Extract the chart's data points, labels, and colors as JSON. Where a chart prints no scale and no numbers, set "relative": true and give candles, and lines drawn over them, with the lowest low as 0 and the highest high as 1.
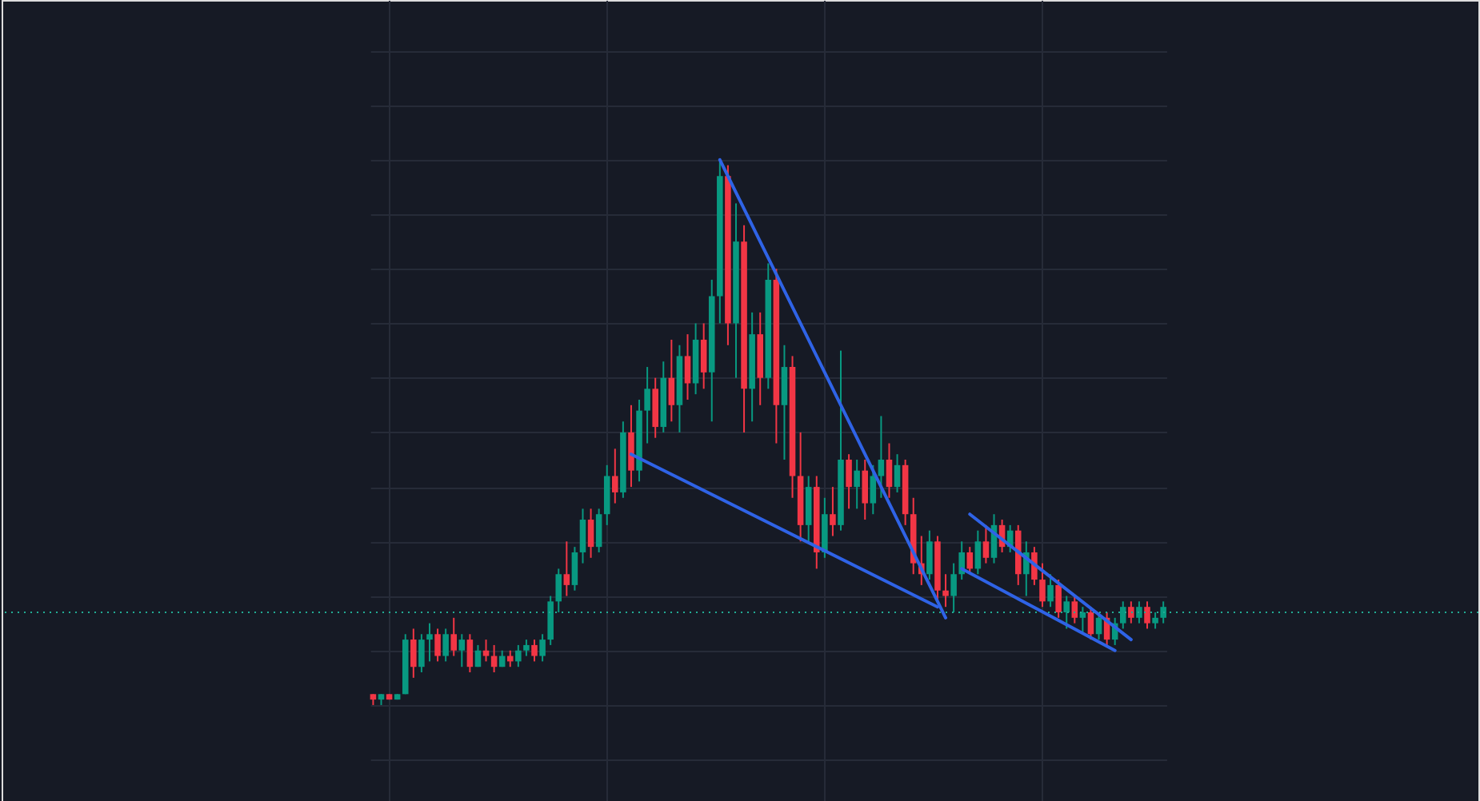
{
  "chart_data": {
    "type": "candlestick",
    "relative": true,
    "grid": true,
    "tick_labels": false,
    "categories": [
      null,
      null,
      null,
      null,
      null,
      null,
      null,
      null,
      null,
      null,
      null,
      null,
      null,
      null,
      null,
      null,
      null,
      null,
      null,
      null,
      null,
      null,
      null,
      null,
      null,
      null,
      null,
      null,
      null,
      null,
      null,
      null,
      null,
      null,
      null,
      null,
      null,
      null,
      null,
      null,
      null,
      null,
      null,
      null,
      null,
      null,
      null,
      null,
      null,
      null,
      null,
      null,
      null,
      null,
      null,
      null,
      null,
      null,
      null,
      null,
      null,
      null,
      null,
      null,
      null,
      null,
      null,
      null,
      null,
      null,
      null,
      null,
      null,
      null,
      null,
      null,
      null,
      null,
      null,
      null,
      null,
      null,
      null,
      null,
      null,
      null,
      null,
      null,
      null,
      null,
      null,
      null,
      null,
      null,
      null,
      null,
      null,
      null,
      null
    ],
    "ohlc": [
      [
        0.02,
        0.02,
        0.0,
        0.01
      ],
      [
        0.01,
        0.02,
        0.0,
        0.02
      ],
      [
        0.02,
        0.02,
        0.01,
        0.01
      ],
      [
        0.01,
        0.02,
        0.01,
        0.02
      ],
      [
        0.02,
        0.13,
        0.02,
        0.12
      ],
      [
        0.12,
        0.14,
        0.05,
        0.07
      ],
      [
        0.07,
        0.13,
        0.06,
        0.12
      ],
      [
        0.12,
        0.15,
        0.08,
        0.13
      ],
      [
        0.13,
        0.14,
        0.08,
        0.09
      ],
      [
        0.09,
        0.14,
        0.08,
        0.13
      ],
      [
        0.13,
        0.16,
        0.09,
        0.1
      ],
      [
        0.1,
        0.13,
        0.07,
        0.12
      ],
      [
        0.12,
        0.13,
        0.06,
        0.07
      ],
      [
        0.07,
        0.11,
        0.07,
        0.1
      ],
      [
        0.1,
        0.12,
        0.08,
        0.09
      ],
      [
        0.09,
        0.11,
        0.06,
        0.07
      ],
      [
        0.07,
        0.1,
        0.07,
        0.09
      ],
      [
        0.09,
        0.1,
        0.07,
        0.08
      ],
      [
        0.08,
        0.11,
        0.07,
        0.1
      ],
      [
        0.1,
        0.12,
        0.09,
        0.11
      ],
      [
        0.11,
        0.12,
        0.08,
        0.09
      ],
      [
        0.09,
        0.13,
        0.08,
        0.12
      ],
      [
        0.12,
        0.2,
        0.11,
        0.19
      ],
      [
        0.19,
        0.25,
        0.17,
        0.24
      ],
      [
        0.24,
        0.3,
        0.2,
        0.22
      ],
      [
        0.22,
        0.29,
        0.21,
        0.28
      ],
      [
        0.28,
        0.36,
        0.26,
        0.34
      ],
      [
        0.34,
        0.36,
        0.27,
        0.29
      ],
      [
        0.29,
        0.36,
        0.28,
        0.35
      ],
      [
        0.35,
        0.44,
        0.33,
        0.42
      ],
      [
        0.42,
        0.47,
        0.37,
        0.39
      ],
      [
        0.39,
        0.52,
        0.38,
        0.5
      ],
      [
        0.5,
        0.55,
        0.4,
        0.43
      ],
      [
        0.43,
        0.56,
        0.41,
        0.54
      ],
      [
        0.54,
        0.62,
        0.48,
        0.58
      ],
      [
        0.58,
        0.6,
        0.49,
        0.51
      ],
      [
        0.51,
        0.63,
        0.5,
        0.6
      ],
      [
        0.6,
        0.67,
        0.52,
        0.55
      ],
      [
        0.55,
        0.66,
        0.5,
        0.64
      ],
      [
        0.64,
        0.68,
        0.56,
        0.59
      ],
      [
        0.59,
        0.7,
        0.57,
        0.67
      ],
      [
        0.67,
        0.7,
        0.58,
        0.61
      ],
      [
        0.61,
        0.78,
        0.52,
        0.75
      ],
      [
        0.75,
        1.0,
        0.7,
        0.97
      ],
      [
        0.97,
        0.99,
        0.66,
        0.7
      ],
      [
        0.7,
        0.92,
        0.6,
        0.85
      ],
      [
        0.85,
        0.88,
        0.5,
        0.58
      ],
      [
        0.58,
        0.72,
        0.52,
        0.68
      ],
      [
        0.68,
        0.72,
        0.55,
        0.6
      ],
      [
        0.6,
        0.81,
        0.58,
        0.78
      ],
      [
        0.78,
        0.8,
        0.48,
        0.55
      ],
      [
        0.55,
        0.66,
        0.45,
        0.62
      ],
      [
        0.62,
        0.64,
        0.38,
        0.42
      ],
      [
        0.42,
        0.5,
        0.3,
        0.33
      ],
      [
        0.33,
        0.42,
        0.3,
        0.4
      ],
      [
        0.4,
        0.42,
        0.25,
        0.28
      ],
      [
        0.28,
        0.38,
        0.27,
        0.35
      ],
      [
        0.35,
        0.4,
        0.31,
        0.33
      ],
      [
        0.33,
        0.65,
        0.32,
        0.45
      ],
      [
        0.45,
        0.46,
        0.36,
        0.4
      ],
      [
        0.4,
        0.45,
        0.36,
        0.43
      ],
      [
        0.43,
        0.45,
        0.34,
        0.37
      ],
      [
        0.37,
        0.44,
        0.35,
        0.42
      ],
      [
        0.42,
        0.53,
        0.38,
        0.45
      ],
      [
        0.45,
        0.48,
        0.38,
        0.4
      ],
      [
        0.4,
        0.46,
        0.39,
        0.44
      ],
      [
        0.44,
        0.45,
        0.33,
        0.35
      ],
      [
        0.35,
        0.38,
        0.24,
        0.26
      ],
      [
        0.26,
        0.31,
        0.22,
        0.24
      ],
      [
        0.24,
        0.32,
        0.23,
        0.3
      ],
      [
        0.3,
        0.31,
        0.19,
        0.21
      ],
      [
        0.21,
        0.24,
        0.18,
        0.2
      ],
      [
        0.2,
        0.26,
        0.17,
        0.24
      ],
      [
        0.24,
        0.3,
        0.23,
        0.28
      ],
      [
        0.28,
        0.29,
        0.24,
        0.25
      ],
      [
        0.25,
        0.32,
        0.24,
        0.3
      ],
      [
        0.3,
        0.33,
        0.26,
        0.27
      ],
      [
        0.27,
        0.35,
        0.26,
        0.33
      ],
      [
        0.33,
        0.34,
        0.28,
        0.29
      ],
      [
        0.29,
        0.33,
        0.28,
        0.32
      ],
      [
        0.32,
        0.33,
        0.22,
        0.24
      ],
      [
        0.24,
        0.3,
        0.2,
        0.28
      ],
      [
        0.28,
        0.29,
        0.22,
        0.23
      ],
      [
        0.23,
        0.26,
        0.18,
        0.19
      ],
      [
        0.19,
        0.24,
        0.18,
        0.22
      ],
      [
        0.22,
        0.23,
        0.16,
        0.17
      ],
      [
        0.17,
        0.2,
        0.14,
        0.19
      ],
      [
        0.19,
        0.2,
        0.15,
        0.16
      ],
      [
        0.16,
        0.18,
        0.13,
        0.17
      ],
      [
        0.17,
        0.18,
        0.12,
        0.13
      ],
      [
        0.13,
        0.17,
        0.12,
        0.16
      ],
      [
        0.16,
        0.17,
        0.11,
        0.12
      ],
      [
        0.12,
        0.16,
        0.11,
        0.15
      ],
      [
        0.15,
        0.19,
        0.14,
        0.18
      ],
      [
        0.18,
        0.19,
        0.15,
        0.16
      ],
      [
        0.16,
        0.19,
        0.15,
        0.18
      ],
      [
        0.18,
        0.19,
        0.14,
        0.15
      ],
      [
        0.15,
        0.17,
        0.14,
        0.16
      ],
      [
        0.16,
        0.19,
        0.15,
        0.18
      ]
    ],
    "colors": [
      "#f23645",
      "#089981",
      "#f23645",
      "#089981",
      "#089981",
      "#f23645",
      "#089981",
      "#089981",
      "#f23645",
      "#089981",
      "#f23645",
      "#089981",
      "#f23645",
      "#089981",
      "#f23645",
      "#f23645",
      "#089981",
      "#f23645",
      "#089981",
      "#089981",
      "#f23645",
      "#089981",
      "#089981",
      "#089981",
      "#f23645",
      "#089981",
      "#089981",
      "#f23645",
      "#089981",
      "#089981",
      "#f23645",
      "#089981",
      "#f23645",
      "#089981",
      "#089981",
      "#f23645",
      "#089981",
      "#f23645",
      "#089981",
      "#f23645",
      "#089981",
      "#f23645",
      "#089981",
      "#089981",
      "#f23645",
      "#089981",
      "#f23645",
      "#089981",
      "#f23645",
      "#089981",
      "#f23645",
      "#089981",
      "#f23645",
      "#f23645",
      "#089981",
      "#f23645",
      "#089981",
      "#f23645",
      "#089981",
      "#f23645",
      "#089981",
      "#f23645",
      "#089981",
      "#089981",
      "#f23645",
      "#089981",
      "#f23645",
      "#f23645",
      "#f23645",
      "#089981",
      "#f23645",
      "#f23645",
      "#089981",
      "#089981",
      "#f23645",
      "#089981",
      "#f23645",
      "#089981",
      "#f23645",
      "#089981",
      "#f23645",
      "#089981",
      "#f23645",
      "#f23645",
      "#089981",
      "#f23645",
      "#089981",
      "#f23645",
      "#089981",
      "#f23645",
      "#089981",
      "#f23645",
      "#089981",
      "#089981",
      "#f23645",
      "#089981",
      "#f23645",
      "#089981",
      "#089981"
    ],
    "series": [
      {
        "type": "line",
        "color": "#2f63e6",
        "values": [
          null,
          null,
          null,
          null,
          null,
          null,
          null,
          null,
          null,
          null,
          null,
          null,
          null,
          null,
          null,
          null,
          null,
          null,
          null,
          null,
          null,
          null,
          null,
          null,
          null,
          null,
          null,
          null,
          null,
          null,
          null,
          null,
          null,
          null,
          null,
          null,
          null,
          null,
          null,
          null,
          null,
          null,
          null,
          1.0,
          null,
          null,
          null,
          null,
          null,
          null,
          null,
          null,
          null,
          null,
          null,
          null,
          null,
          null,
          null,
          null,
          null,
          null,
          null,
          null,
          null,
          null,
          null,
          null,
          null,
          null,
          null,
          0.16,
          null,
          null,
          null,
          null,
          null,
          null,
          null,
          null,
          null,
          null,
          null,
          null,
          null,
          null,
          null,
          null,
          null,
          null,
          null,
          null,
          null,
          null,
          null,
          null,
          null,
          null,
          null
        ]
      },
      {
        "type": "line",
        "color": "#2f63e6",
        "values": [
          null,
          null,
          null,
          null,
          null,
          null,
          null,
          null,
          null,
          null,
          null,
          null,
          null,
          null,
          null,
          null,
          null,
          null,
          null,
          null,
          null,
          null,
          null,
          null,
          null,
          null,
          null,
          null,
          null,
          null,
          null,
          null,
          0.46,
          null,
          null,
          null,
          null,
          null,
          null,
          null,
          null,
          null,
          null,
          null,
          null,
          null,
          null,
          null,
          null,
          null,
          null,
          null,
          null,
          null,
          null,
          null,
          null,
          null,
          null,
          null,
          null,
          null,
          null,
          null,
          null,
          null,
          null,
          null,
          null,
          null,
          0.18,
          null,
          null,
          null,
          null,
          null,
          null,
          null,
          null,
          null,
          null,
          null,
          null,
          null,
          null,
          null,
          null,
          null,
          null,
          null,
          null,
          null,
          null,
          null,
          null,
          null,
          null,
          null,
          null
        ]
      },
      {
        "type": "line",
        "color": "#2f63e6",
        "values": [
          null,
          null,
          null,
          null,
          null,
          null,
          null,
          null,
          null,
          null,
          null,
          null,
          null,
          null,
          null,
          null,
          null,
          null,
          null,
          null,
          null,
          null,
          null,
          null,
          null,
          null,
          null,
          null,
          null,
          null,
          null,
          null,
          null,
          null,
          null,
          null,
          null,
          null,
          null,
          null,
          null,
          null,
          null,
          null,
          null,
          null,
          null,
          null,
          null,
          null,
          null,
          null,
          null,
          null,
          null,
          null,
          null,
          null,
          null,
          null,
          null,
          null,
          null,
          null,
          null,
          null,
          null,
          null,
          null,
          null,
          null,
          null,
          null,
          null,
          0.35,
          null,
          null,
          null,
          null,
          null,
          null,
          null,
          null,
          null,
          null,
          null,
          null,
          null,
          null,
          null,
          null,
          null,
          null,
          null,
          0.12,
          null,
          null,
          null,
          null
        ]
      },
      {
        "type": "line",
        "color": "#2f63e6",
        "values": [
          null,
          null,
          null,
          null,
          null,
          null,
          null,
          null,
          null,
          null,
          null,
          null,
          null,
          null,
          null,
          null,
          null,
          null,
          null,
          null,
          null,
          null,
          null,
          null,
          null,
          null,
          null,
          null,
          null,
          null,
          null,
          null,
          null,
          null,
          null,
          null,
          null,
          null,
          null,
          null,
          null,
          null,
          null,
          null,
          null,
          null,
          null,
          null,
          null,
          null,
          null,
          null,
          null,
          null,
          null,
          null,
          null,
          null,
          null,
          null,
          null,
          null,
          null,
          null,
          null,
          null,
          null,
          null,
          null,
          null,
          null,
          null,
          null,
          0.25,
          null,
          null,
          null,
          null,
          null,
          null,
          null,
          null,
          null,
          null,
          null,
          null,
          null,
          null,
          null,
          null,
          null,
          null,
          0.1,
          null,
          null,
          null,
          null,
          null,
          null
        ]
      }
    ],
    "ref_lines": [
      {
        "axis": "y",
        "value": 0.17,
        "color": "#22ab94",
        "line_style": "dotted"
      }
    ]
  }
}
